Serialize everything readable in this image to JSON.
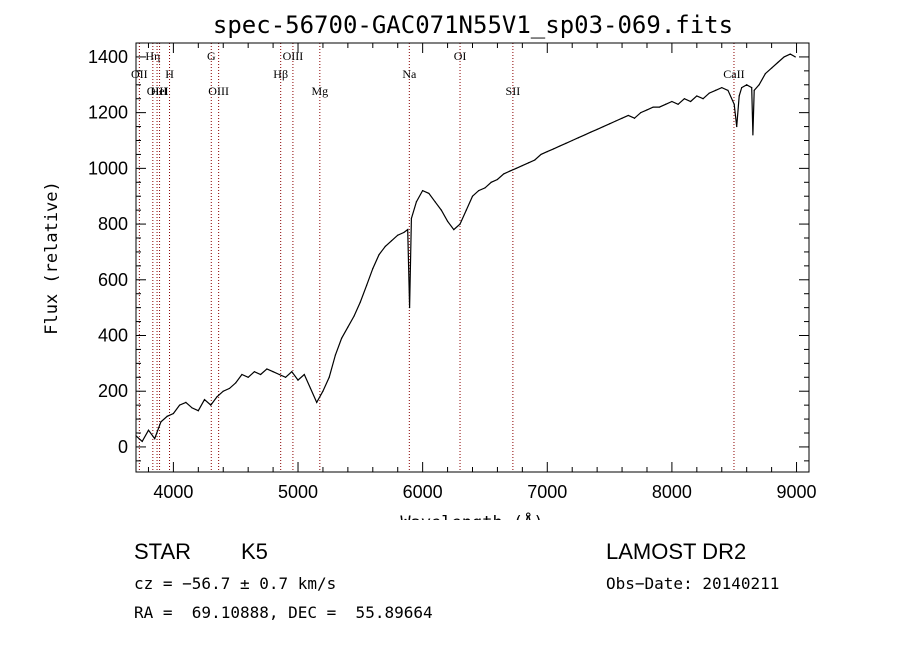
{
  "chart_data": {
    "type": "line",
    "title": "spec-56700-GAC071N55V1_sp03-069.fits",
    "xlabel": "Wavelength (Å)",
    "ylabel": "Flux (relative)",
    "xlim": [
      3700,
      9100
    ],
    "ylim": [
      -90,
      1450
    ],
    "xticks": [
      4000,
      5000,
      6000,
      7000,
      8000,
      9000
    ],
    "yticks": [
      0,
      200,
      400,
      600,
      800,
      1000,
      1200,
      1400
    ],
    "x": [
      3700,
      3750,
      3800,
      3850,
      3900,
      3950,
      4000,
      4050,
      4100,
      4150,
      4200,
      4250,
      4300,
      4350,
      4400,
      4450,
      4500,
      4550,
      4600,
      4650,
      4700,
      4750,
      4800,
      4850,
      4900,
      4950,
      5000,
      5050,
      5100,
      5150,
      5200,
      5250,
      5300,
      5350,
      5400,
      5450,
      5500,
      5550,
      5600,
      5650,
      5700,
      5750,
      5800,
      5850,
      5880,
      5895,
      5910,
      5950,
      6000,
      6050,
      6100,
      6150,
      6200,
      6250,
      6300,
      6350,
      6400,
      6450,
      6500,
      6550,
      6600,
      6650,
      6700,
      6750,
      6800,
      6850,
      6900,
      6950,
      7000,
      7050,
      7100,
      7150,
      7200,
      7250,
      7300,
      7350,
      7400,
      7450,
      7500,
      7550,
      7600,
      7650,
      7700,
      7750,
      7800,
      7850,
      7900,
      7950,
      8000,
      8050,
      8100,
      8150,
      8200,
      8250,
      8300,
      8350,
      8400,
      8450,
      8500,
      8520,
      8540,
      8560,
      8600,
      8640,
      8650,
      8660,
      8700,
      8750,
      8800,
      8850,
      8900,
      8950,
      8990
    ],
    "y": [
      40,
      20,
      60,
      30,
      90,
      110,
      120,
      150,
      160,
      140,
      130,
      170,
      150,
      180,
      200,
      210,
      230,
      260,
      250,
      270,
      260,
      280,
      270,
      260,
      250,
      270,
      240,
      260,
      210,
      160,
      200,
      250,
      330,
      390,
      430,
      470,
      520,
      580,
      640,
      690,
      720,
      740,
      760,
      770,
      780,
      500,
      820,
      880,
      920,
      910,
      880,
      850,
      810,
      780,
      800,
      850,
      900,
      920,
      930,
      950,
      960,
      980,
      990,
      1000,
      1010,
      1020,
      1030,
      1050,
      1060,
      1070,
      1080,
      1090,
      1100,
      1110,
      1120,
      1130,
      1140,
      1150,
      1160,
      1170,
      1180,
      1190,
      1180,
      1200,
      1210,
      1220,
      1220,
      1230,
      1240,
      1230,
      1250,
      1240,
      1260,
      1250,
      1270,
      1280,
      1290,
      1280,
      1230,
      1150,
      1260,
      1290,
      1300,
      1290,
      1120,
      1280,
      1300,
      1340,
      1360,
      1380,
      1400,
      1410,
      1400
    ],
    "lines": [
      {
        "label": "OII",
        "wavelength": 3727,
        "row": 2
      },
      {
        "label": "Hη",
        "wavelength": 3835,
        "row": 1
      },
      {
        "label": "OIII",
        "wavelength": 3869,
        "row": 3
      },
      {
        "label": "HeI",
        "wavelength": 3889,
        "row": 3
      },
      {
        "label": "H",
        "wavelength": 3969,
        "row": 2
      },
      {
        "label": "G",
        "wavelength": 4304,
        "row": 1
      },
      {
        "label": "OIII",
        "wavelength": 4363,
        "row": 3
      },
      {
        "label": "Hβ",
        "wavelength": 4861,
        "row": 2
      },
      {
        "label": "OIII",
        "wavelength": 4959,
        "row": 1
      },
      {
        "label": "Mg",
        "wavelength": 5175,
        "row": 3
      },
      {
        "label": "Na",
        "wavelength": 5893,
        "row": 2
      },
      {
        "label": "OI",
        "wavelength": 6300,
        "row": 1
      },
      {
        "label": "SII",
        "wavelength": 6724,
        "row": 3
      },
      {
        "label": "CaII",
        "wavelength": 8498,
        "row": 2
      }
    ]
  },
  "info": {
    "object_class": "STAR",
    "subclass": "K5",
    "survey": "LAMOST DR2",
    "cz": "cz = −56.7 ± 0.7 km/s",
    "obs_date": "Obs−Date: 20140211",
    "coords": "RA =  69.10888, DEC =  55.89664"
  },
  "colors": {
    "spectrum": "#000000",
    "line_marker": "#8b0000"
  }
}
